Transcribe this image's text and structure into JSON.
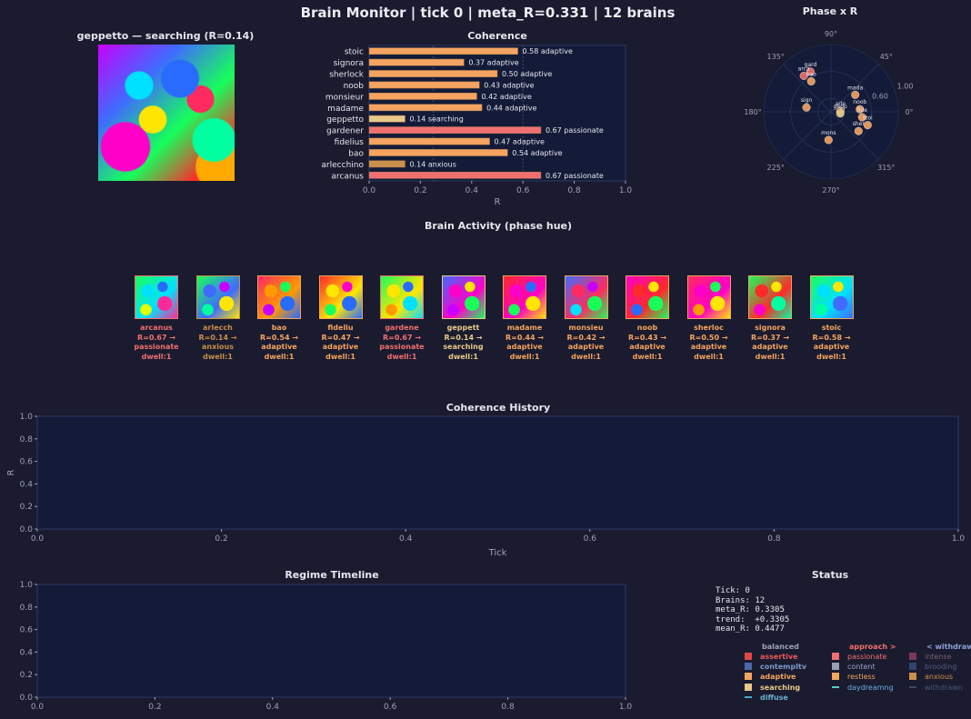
{
  "header": {
    "title": "Brain Monitor  |  tick 0  |  meta_R=0.331  |  12 brains"
  },
  "focus_panel": {
    "title": "geppetto — searching (R=0.14)"
  },
  "coherence": {
    "title": "Coherence",
    "xlabel": "R",
    "xticks": [
      "0.0",
      "0.2",
      "0.4",
      "0.6",
      "0.8",
      "1.0"
    ],
    "bars": [
      {
        "name": "stoic",
        "value": 0.58,
        "label": "0.58 adaptive",
        "color": "#f4a460"
      },
      {
        "name": "signora",
        "value": 0.37,
        "label": "0.37 adaptive",
        "color": "#f4a460"
      },
      {
        "name": "sherlock",
        "value": 0.5,
        "label": "0.50 adaptive",
        "color": "#f4a460"
      },
      {
        "name": "noob",
        "value": 0.43,
        "label": "0.43 adaptive",
        "color": "#f4a460"
      },
      {
        "name": "monsieur",
        "value": 0.42,
        "label": "0.42 adaptive",
        "color": "#f4a460"
      },
      {
        "name": "madame",
        "value": 0.44,
        "label": "0.44 adaptive",
        "color": "#f4a460"
      },
      {
        "name": "geppetto",
        "value": 0.14,
        "label": "0.14 searching",
        "color": "#e8c98a"
      },
      {
        "name": "gardener",
        "value": 0.67,
        "label": "0.67 passionate",
        "color": "#f07070"
      },
      {
        "name": "fidelius",
        "value": 0.47,
        "label": "0.47 adaptive",
        "color": "#f4a460"
      },
      {
        "name": "bao",
        "value": 0.54,
        "label": "0.54 adaptive",
        "color": "#f4a460"
      },
      {
        "name": "arlecchino",
        "value": 0.14,
        "label": "0.14 anxious",
        "color": "#c8904a"
      },
      {
        "name": "arcanus",
        "value": 0.67,
        "label": "0.67 passionate",
        "color": "#f07070"
      }
    ]
  },
  "phase": {
    "title": "Phase x R",
    "angle_labels": [
      "90°",
      "45°",
      "0°",
      "315°",
      "270°",
      "225°",
      "180°",
      "135°"
    ],
    "radial_labels": [
      "0.60",
      "1.00"
    ],
    "points": [
      {
        "label": "gard",
        "angle": 117,
        "r": 0.67,
        "color": "#f07070"
      },
      {
        "label": "arca",
        "angle": 127,
        "r": 0.67,
        "color": "#f07070"
      },
      {
        "label": "bao",
        "angle": 123,
        "r": 0.54,
        "color": "#f4a460"
      },
      {
        "label": "sign",
        "angle": 170,
        "r": 0.37,
        "color": "#f4a460"
      },
      {
        "label": "mada",
        "angle": 35,
        "r": 0.44,
        "color": "#f4a460"
      },
      {
        "label": "noob",
        "angle": 5,
        "r": 0.43,
        "color": "#f4a460"
      },
      {
        "label": "fide",
        "angle": 350,
        "r": 0.47,
        "color": "#f4a460"
      },
      {
        "label": "stoi",
        "angle": 340,
        "r": 0.58,
        "color": "#f4a460"
      },
      {
        "label": "sher",
        "angle": 325,
        "r": 0.5,
        "color": "#f4a460"
      },
      {
        "label": "mons",
        "angle": 265,
        "r": 0.42,
        "color": "#f4a460"
      },
      {
        "label": "arle",
        "angle": 5,
        "r": 0.14,
        "color": "#c8904a"
      },
      {
        "label": "gepp",
        "angle": 350,
        "r": 0.14,
        "color": "#e8c98a"
      }
    ]
  },
  "activity": {
    "title": "Brain Activity (phase hue)",
    "brains": [
      {
        "name": "arcanus",
        "r_line": "R=0.67 →",
        "state": "passionate",
        "dwell": "dwell:1",
        "color": "#f07070"
      },
      {
        "name": "arlecch",
        "r_line": "R=0.14 →",
        "state": "anxious",
        "dwell": "dwell:1",
        "color": "#c8904a"
      },
      {
        "name": "bao",
        "r_line": "R=0.54 →",
        "state": "adaptive",
        "dwell": "dwell:1",
        "color": "#f4a460"
      },
      {
        "name": "fideliu",
        "r_line": "R=0.47 →",
        "state": "adaptive",
        "dwell": "dwell:1",
        "color": "#f4a460"
      },
      {
        "name": "gardene",
        "r_line": "R=0.67 →",
        "state": "passionate",
        "dwell": "dwell:1",
        "color": "#f07070"
      },
      {
        "name": "geppett",
        "r_line": "R=0.14 →",
        "state": "searching",
        "dwell": "dwell:1",
        "color": "#e8c98a"
      },
      {
        "name": "madame",
        "r_line": "R=0.44 →",
        "state": "adaptive",
        "dwell": "dwell:1",
        "color": "#f4a460"
      },
      {
        "name": "monsieu",
        "r_line": "R=0.42 →",
        "state": "adaptive",
        "dwell": "dwell:1",
        "color": "#f4a460"
      },
      {
        "name": "noob",
        "r_line": "R=0.43 →",
        "state": "adaptive",
        "dwell": "dwell:1",
        "color": "#f4a460"
      },
      {
        "name": "sherloc",
        "r_line": "R=0.50 →",
        "state": "adaptive",
        "dwell": "dwell:1",
        "color": "#f4a460"
      },
      {
        "name": "signora",
        "r_line": "R=0.37 →",
        "state": "adaptive",
        "dwell": "dwell:1",
        "color": "#f4a460"
      },
      {
        "name": "stoic",
        "r_line": "R=0.58 →",
        "state": "adaptive",
        "dwell": "dwell:1",
        "color": "#f4a460"
      }
    ]
  },
  "history": {
    "title": "Coherence History",
    "xlabel": "Tick",
    "ylabel": "R",
    "xticks": [
      "0.0",
      "0.2",
      "0.4",
      "0.6",
      "0.8",
      "1.0"
    ],
    "yticks": [
      "0.0",
      "0.2",
      "0.4",
      "0.6",
      "0.8",
      "1.0"
    ]
  },
  "timeline": {
    "title": "Regime Timeline",
    "xticks": [
      "0.0",
      "0.2",
      "0.4",
      "0.6",
      "0.8",
      "1.0"
    ],
    "yticks": [
      "0.0",
      "0.2",
      "0.4",
      "0.6",
      "0.8",
      "1.0"
    ]
  },
  "status": {
    "title": "Status",
    "lines": [
      "Tick: 0",
      "Brains: 12",
      "meta_R: 0.3305",
      "trend:  +0.3305",
      "mean_R: 0.4477"
    ]
  },
  "legend": {
    "headers": [
      {
        "text": "balanced",
        "color": "#9ea0b8"
      },
      {
        "text": "approach >",
        "color": "#f07070"
      },
      {
        "text": "< withdraw",
        "color": "#8fa0d8"
      }
    ],
    "columns": [
      [
        {
          "label": "assertive",
          "color": "#e04848",
          "text_color": "#e85a5a",
          "bold": true
        },
        {
          "label": "contempltv",
          "color": "#4a68a8",
          "text_color": "#7f98cc",
          "bold": true
        },
        {
          "label": "adaptive",
          "color": "#f4a460",
          "text_color": "#f4a460",
          "bold": true
        },
        {
          "label": "searching",
          "color": "#e8c98a",
          "text_color": "#e8c98a",
          "bold": true
        },
        {
          "label": "diffuse",
          "color": "#4aa8c8",
          "text_color": "#6ab0d0",
          "bold": true,
          "dash": true
        }
      ],
      [
        {
          "label": "passionate",
          "color": "#f07070",
          "text_color": "#f07070"
        },
        {
          "label": "content",
          "color": "#9aa0b4",
          "text_color": "#9aa4c8"
        },
        {
          "label": "restless",
          "color": "#f0a860",
          "text_color": "#f0a860"
        },
        {
          "label": "daydreamng",
          "color": "#50d0c8",
          "text_color": "#6ab0e0",
          "dash": true
        }
      ],
      [
        {
          "label": "intense",
          "color": "#7a3858",
          "text_color": "#7a6070"
        },
        {
          "label": "brooding",
          "color": "#2e4470",
          "text_color": "#505e80"
        },
        {
          "label": "anxious",
          "color": "#c8904a",
          "text_color": "#c8904a"
        },
        {
          "label": "withdrawn",
          "color": "#3a4a6a",
          "text_color": "#4a5878",
          "dash": true
        }
      ]
    ]
  },
  "chart_data": [
    {
      "type": "bar",
      "title": "Coherence",
      "xlabel": "R",
      "xlim": [
        0,
        1
      ],
      "categories": [
        "stoic",
        "signora",
        "sherlock",
        "noob",
        "monsieur",
        "madame",
        "geppetto",
        "gardener",
        "fidelius",
        "bao",
        "arlecchino",
        "arcanus"
      ],
      "values": [
        0.58,
        0.37,
        0.5,
        0.43,
        0.42,
        0.44,
        0.14,
        0.67,
        0.47,
        0.54,
        0.14,
        0.67
      ]
    },
    {
      "type": "scatter",
      "title": "Phase x R",
      "polar": true,
      "points": [
        {
          "label": "gard",
          "angle_deg": 117,
          "r": 0.67
        },
        {
          "label": "arca",
          "angle_deg": 127,
          "r": 0.67
        },
        {
          "label": "bao",
          "angle_deg": 123,
          "r": 0.54
        },
        {
          "label": "sign",
          "angle_deg": 170,
          "r": 0.37
        },
        {
          "label": "mada",
          "angle_deg": 35,
          "r": 0.44
        },
        {
          "label": "noob",
          "angle_deg": 5,
          "r": 0.43
        },
        {
          "label": "fide",
          "angle_deg": 350,
          "r": 0.47
        },
        {
          "label": "stoi",
          "angle_deg": 340,
          "r": 0.58
        },
        {
          "label": "sher",
          "angle_deg": 325,
          "r": 0.5
        },
        {
          "label": "mons",
          "angle_deg": 265,
          "r": 0.42
        },
        {
          "label": "arle",
          "angle_deg": 5,
          "r": 0.14
        },
        {
          "label": "gepp",
          "angle_deg": 350,
          "r": 0.14
        }
      ]
    },
    {
      "type": "line",
      "title": "Coherence History",
      "xlabel": "Tick",
      "ylabel": "R",
      "xlim": [
        0,
        1
      ],
      "ylim": [
        0,
        1
      ],
      "series": []
    },
    {
      "type": "line",
      "title": "Regime Timeline",
      "xlim": [
        0,
        1
      ],
      "ylim": [
        0,
        1
      ],
      "series": []
    }
  ]
}
